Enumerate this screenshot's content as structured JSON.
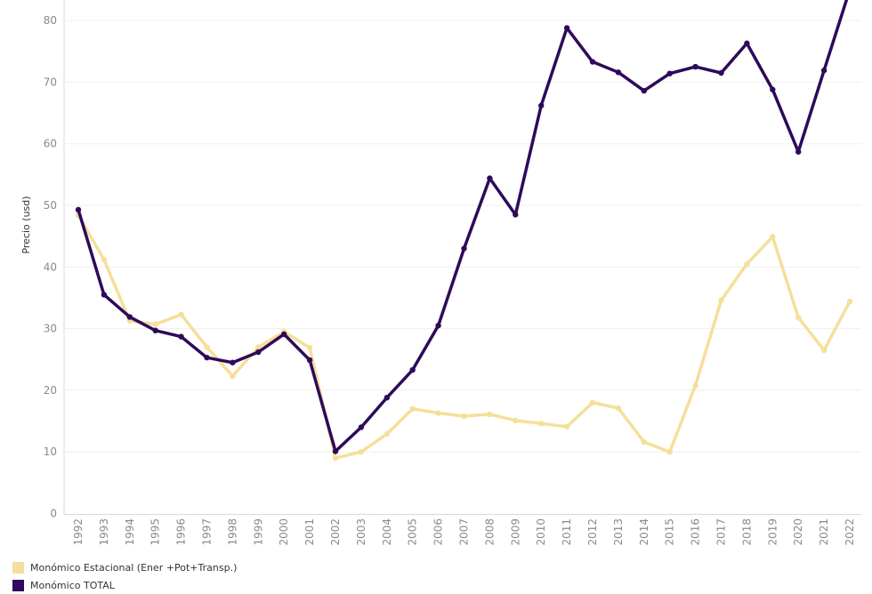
{
  "chart_data": {
    "type": "line",
    "ylabel": "Precio (usd)",
    "ylim": [
      0,
      80
    ],
    "y_ticks": [
      0,
      10,
      20,
      30,
      40,
      50,
      60,
      70,
      80
    ],
    "grid": true,
    "legend_position": "bottom-left",
    "categories": [
      "1992",
      "1993",
      "1994",
      "1995",
      "1996",
      "1997",
      "1998",
      "1999",
      "2000",
      "2001",
      "2002",
      "2003",
      "2004",
      "2005",
      "2006",
      "2007",
      "2008",
      "2009",
      "2010",
      "2011",
      "2012",
      "2013",
      "2014",
      "2015",
      "2016",
      "2017",
      "2018",
      "2019",
      "2020",
      "2021",
      "2022"
    ],
    "series": [
      {
        "name": "Monómico Estacional (Ener +Pot+Transp.)",
        "color": "#f5df9a",
        "values": [
          48.4,
          41.2,
          31.3,
          30.7,
          32.3,
          27.0,
          22.3,
          27.0,
          29.5,
          26.9,
          9.0,
          10.0,
          12.9,
          17.0,
          16.3,
          15.8,
          16.1,
          15.1,
          14.6,
          14.1,
          18.0,
          17.1,
          11.6,
          10.0,
          20.8,
          34.6,
          40.5,
          44.9,
          31.8,
          26.5,
          34.4
        ]
      },
      {
        "name": "Monómico TOTAL",
        "color": "#2e0a5a",
        "values": [
          49.3,
          35.5,
          31.9,
          29.7,
          28.7,
          25.3,
          24.5,
          26.2,
          29.1,
          24.9,
          10.1,
          14.0,
          18.8,
          23.3,
          30.5,
          43.0,
          54.4,
          48.5,
          66.2,
          78.8,
          73.3,
          71.6,
          68.6,
          71.4,
          72.5,
          71.5,
          76.3,
          68.8,
          58.7,
          71.9,
          85.0
        ]
      }
    ]
  }
}
